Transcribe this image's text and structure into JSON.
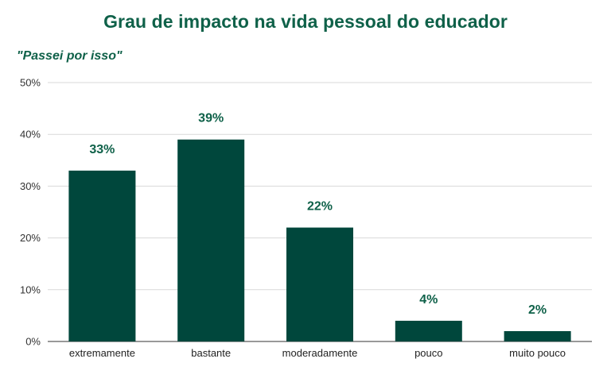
{
  "header": {
    "title": "Grau de impacto na vida pessoal do educador",
    "subtitle": "\"Passei por isso\""
  },
  "colors": {
    "bar": "#00473c",
    "title": "#0f6149",
    "data_label": "#0f6149"
  },
  "chart_data": {
    "type": "bar",
    "title": "Grau de impacto na vida pessoal do educador",
    "subtitle": "\"Passei por isso\"",
    "categories": [
      "extremamente",
      "bastante",
      "moderadamente",
      "pouco",
      "muito pouco"
    ],
    "values": [
      33,
      39,
      22,
      4,
      2
    ],
    "data_labels": [
      "33%",
      "39%",
      "22%",
      "4%",
      "2%"
    ],
    "ylim": [
      0,
      50
    ],
    "yticks": [
      0,
      10,
      20,
      30,
      40,
      50
    ],
    "ytick_labels": [
      "0%",
      "10%",
      "20%",
      "30%",
      "40%",
      "50%"
    ],
    "xlabel": "",
    "ylabel": "",
    "grid": true,
    "legend": "none"
  }
}
